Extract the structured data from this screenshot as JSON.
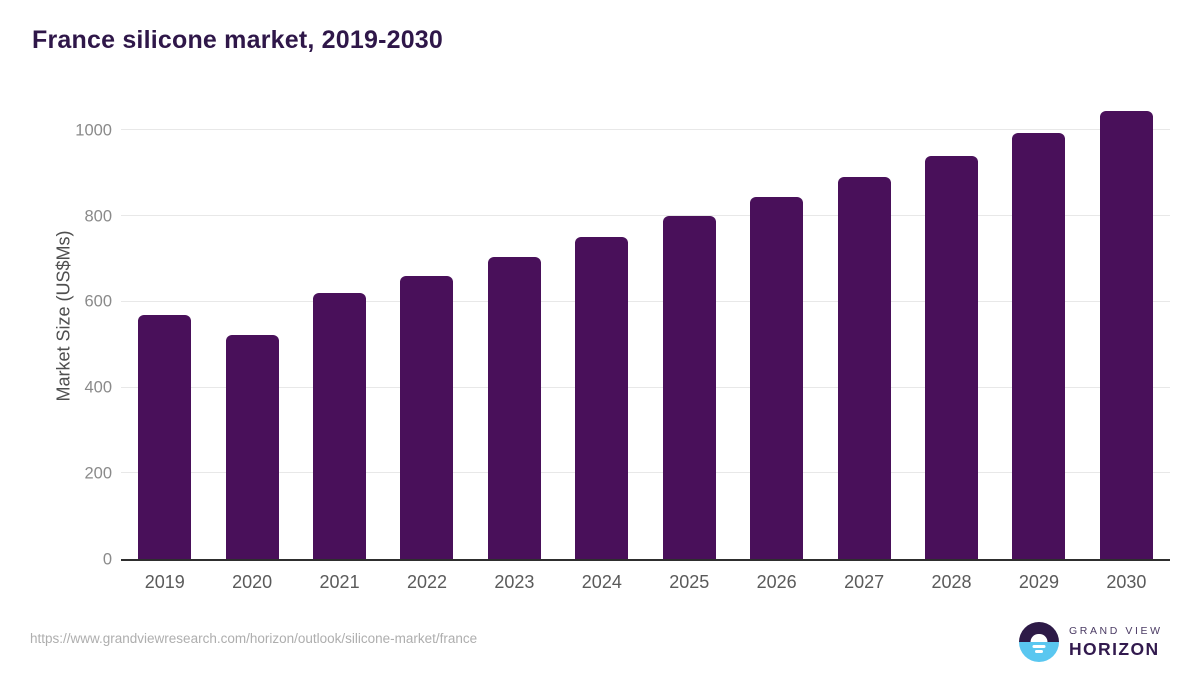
{
  "title": "France silicone market, 2019-2030",
  "chart_data": {
    "type": "bar",
    "title": "France silicone market, 2019-2030",
    "categories": [
      "2019",
      "2020",
      "2021",
      "2022",
      "2023",
      "2024",
      "2025",
      "2026",
      "2027",
      "2028",
      "2029",
      "2030"
    ],
    "values": [
      570,
      522,
      620,
      661,
      705,
      751,
      799,
      845,
      892,
      941,
      993,
      1044
    ],
    "xlabel": "",
    "ylabel": "Market Size (US$Ms)",
    "ylim": [
      0,
      1094
    ],
    "yticks": [
      0,
      200,
      400,
      600,
      800,
      1000
    ],
    "grid": true,
    "legend": false,
    "bar_color": "#49105a"
  },
  "footer": {
    "source_url": "https://www.grandviewresearch.com/horizon/outlook/silicone-market/france"
  },
  "logo": {
    "line1": "GRAND VIEW",
    "line2": "HORIZON"
  },
  "colors": {
    "bar": "#49105a",
    "title_text": "#2f1749",
    "axis_line": "#2e2e2e",
    "gridline": "#e8e8e8",
    "y_tick_text": "#8a8a8a",
    "x_tick_text": "#5a5a5a",
    "source_text": "#aeaeae",
    "logo_sky": "#2d1a47",
    "logo_sea": "#5ac7f0"
  }
}
